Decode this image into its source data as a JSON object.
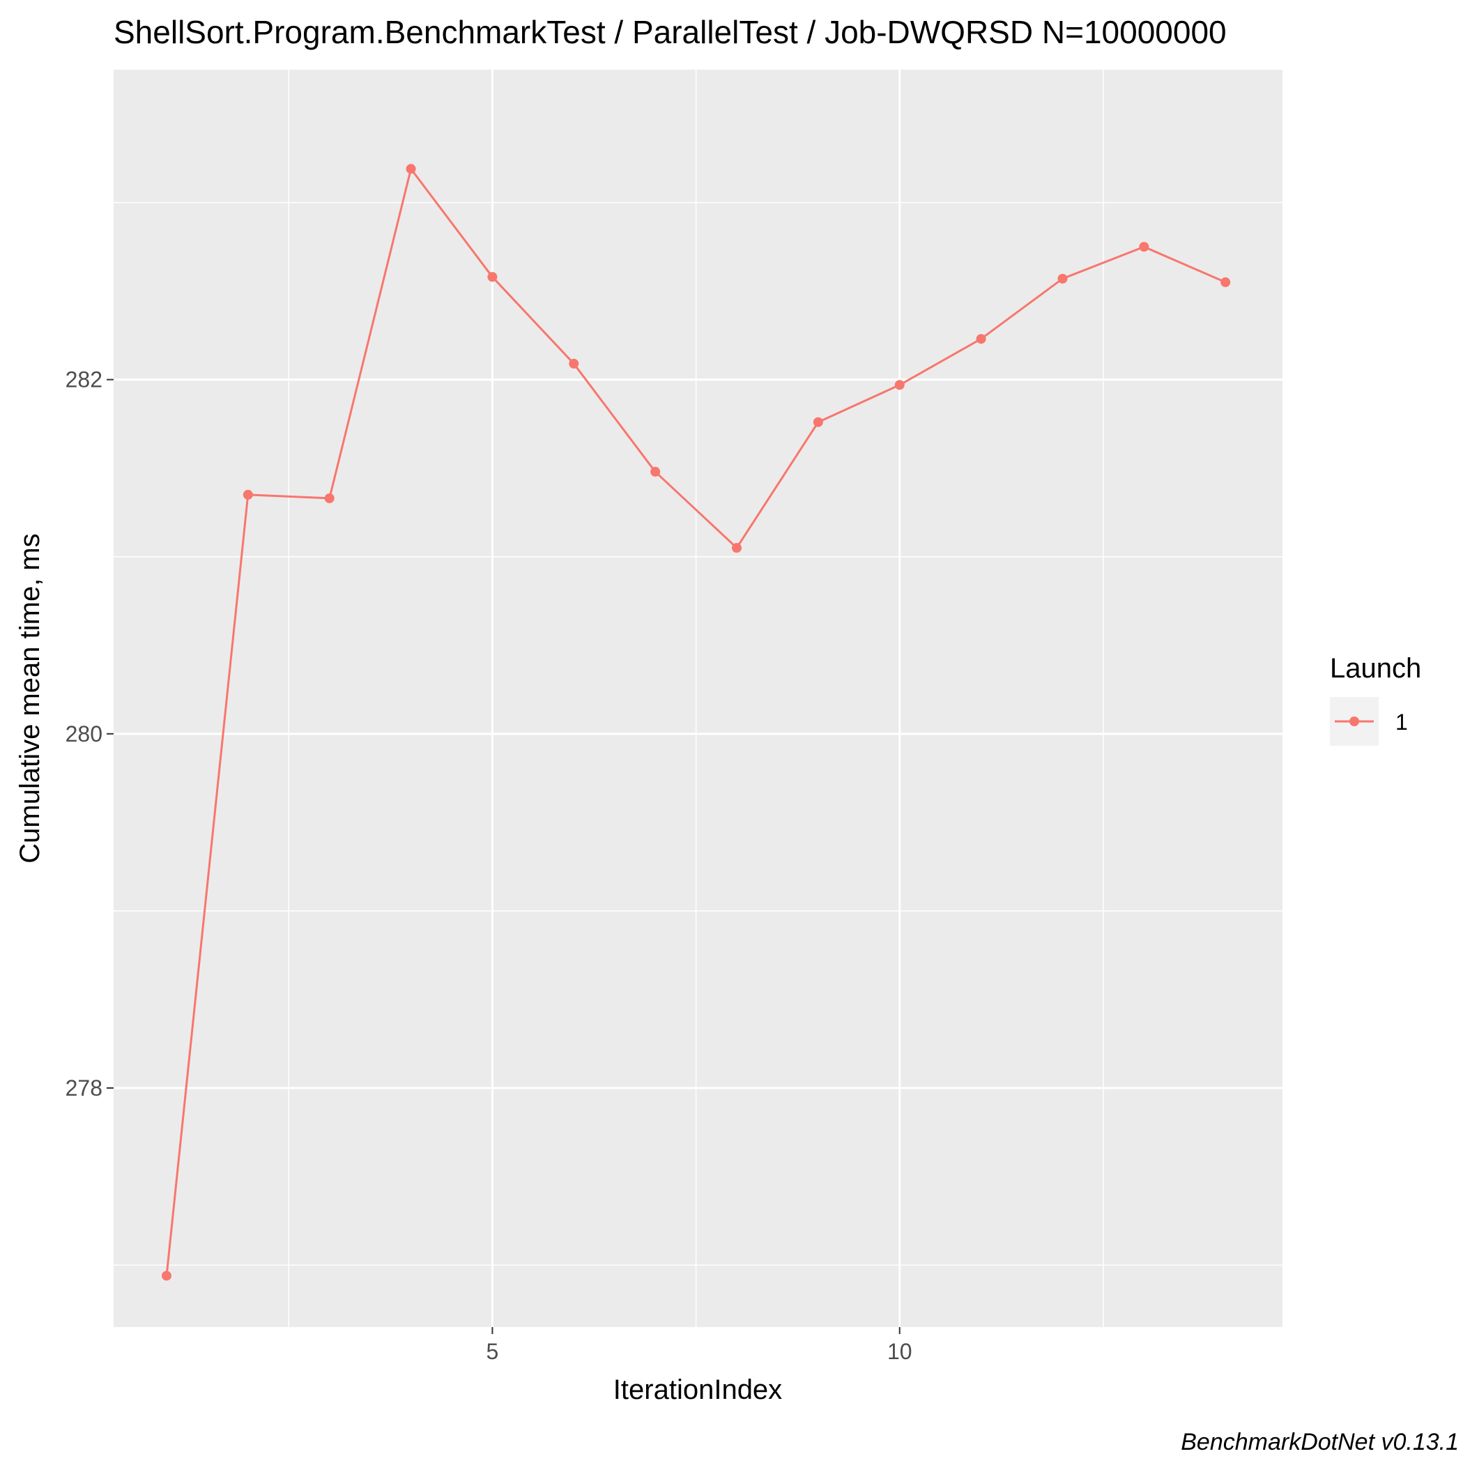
{
  "chart_data": {
    "type": "line",
    "title": "ShellSort.Program.BenchmarkTest / ParallelTest / Job-DWQRSD N=10000000",
    "xlabel": "IterationIndex",
    "ylabel": "Cumulative mean time, ms",
    "caption": "BenchmarkDotNet v0.13.1",
    "x_ticks": [
      5,
      10
    ],
    "y_ticks": [
      278,
      280,
      282
    ],
    "xlim": [
      0.35,
      14.7
    ],
    "ylim": [
      276.65,
      283.75
    ],
    "grid": true,
    "legend": {
      "title": "Launch",
      "position": "right"
    },
    "series": [
      {
        "name": "1",
        "color": "#F8766D",
        "x": [
          1,
          2,
          3,
          4,
          5,
          6,
          7,
          8,
          9,
          10,
          11,
          12,
          13,
          14
        ],
        "y": [
          276.94,
          281.35,
          281.33,
          283.19,
          282.58,
          282.09,
          281.48,
          281.05,
          281.76,
          281.97,
          282.23,
          282.57,
          282.75,
          282.55
        ]
      }
    ]
  }
}
